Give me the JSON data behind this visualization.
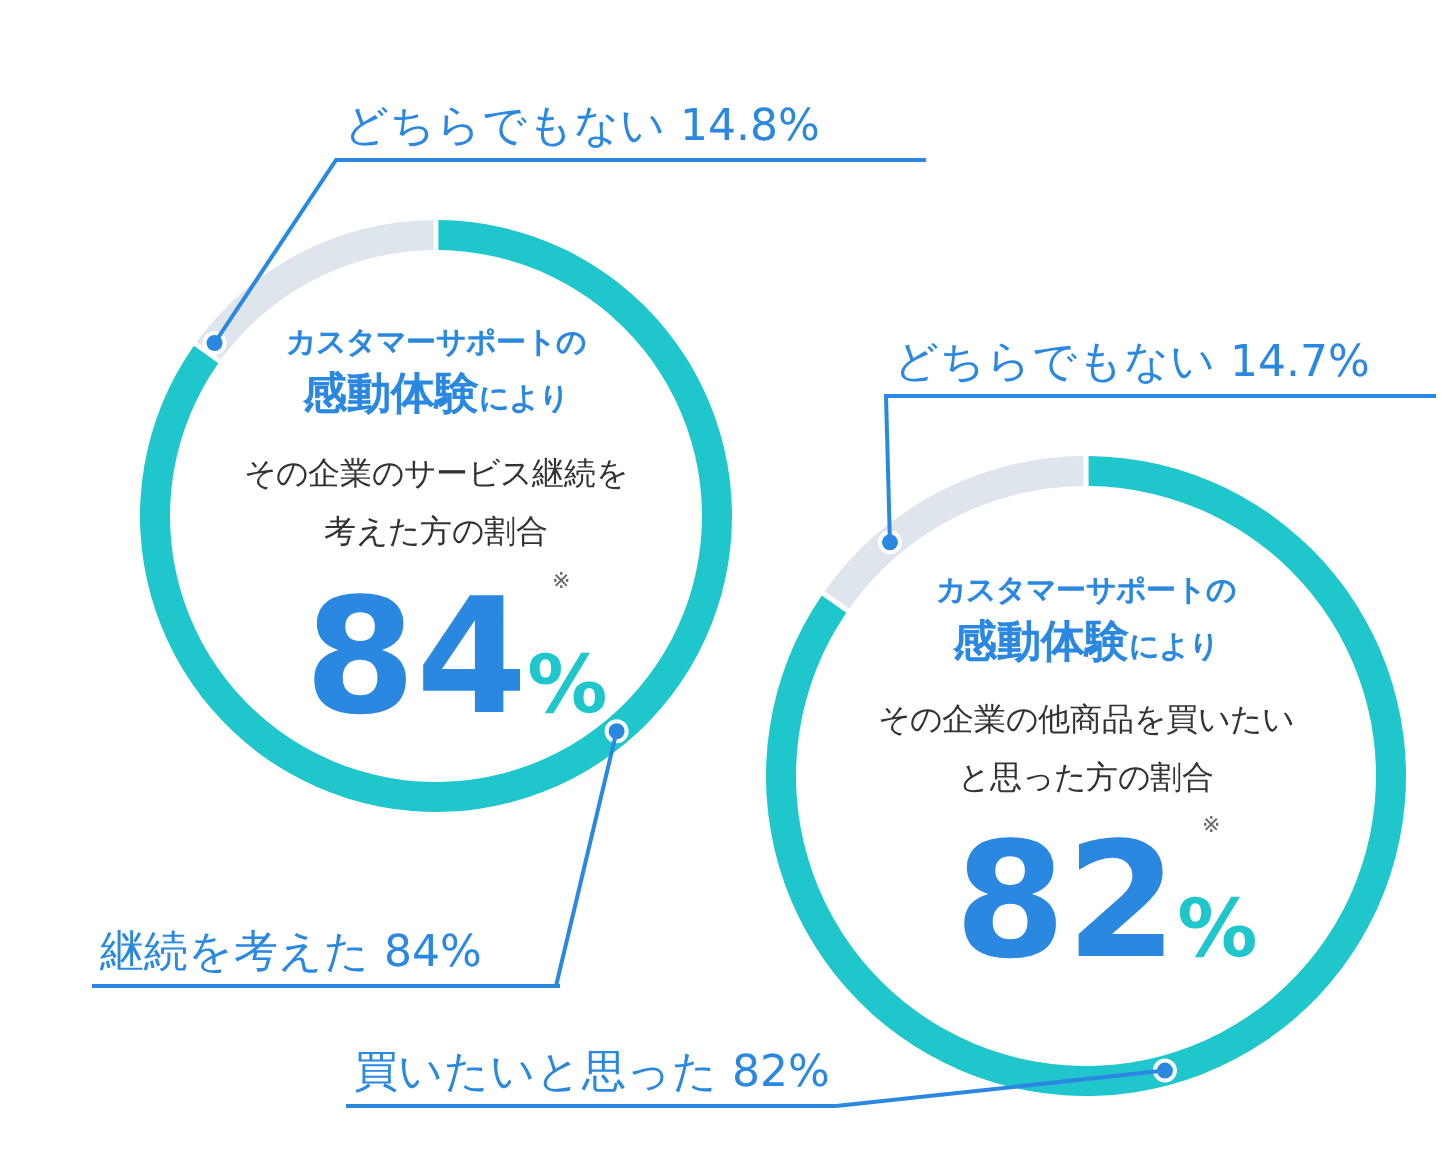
{
  "chart_data": [
    {
      "type": "donut",
      "categories": [
        "継続を考えた",
        "どちらでもない"
      ],
      "values": [
        84,
        14.8
      ],
      "value_labels": [
        "84%",
        "14.8%"
      ],
      "colors": [
        "#1fc6cc",
        "#dfe5ec"
      ],
      "annotations": [
        "カスタマーサポートの",
        "感動体験",
        "により",
        "その企業のサービス継続を",
        "考えた方の割合",
        "84%",
        "※"
      ]
    },
    {
      "type": "donut",
      "categories": [
        "買いたいと思った",
        "どちらでもない"
      ],
      "values": [
        82,
        14.7
      ],
      "value_labels": [
        "82%",
        "14.7%"
      ],
      "colors": [
        "#1fc6cc",
        "#dfe5ec"
      ],
      "annotations": [
        "カスタマーサポートの",
        "感動体験",
        "により",
        "その企業の他商品を買いたい",
        "と思った方の割合",
        "82%",
        "※"
      ]
    }
  ]
}
